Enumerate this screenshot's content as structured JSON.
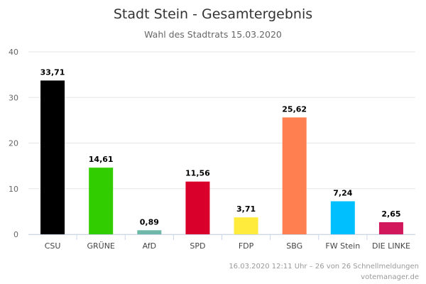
{
  "chart_data": {
    "type": "bar",
    "title": "Stadt Stein - Gesamtergebnis",
    "subtitle": "Wahl des Stadtrats 15.03.2020",
    "xlabel": "",
    "ylabel": "",
    "ylim": [
      0,
      40
    ],
    "yticks": [
      0,
      10,
      20,
      30,
      40
    ],
    "grid": true,
    "categories": [
      "CSU",
      "GRÜNE",
      "AfD",
      "SPD",
      "FDP",
      "SBG",
      "FW Stein",
      "DIE LINKE"
    ],
    "values": [
      33.71,
      14.61,
      0.89,
      11.56,
      3.71,
      25.62,
      7.24,
      2.65
    ],
    "value_labels": [
      "33,71",
      "14,61",
      "0,89",
      "11,56",
      "3,71",
      "25,62",
      "7,24",
      "2,65"
    ],
    "colors": [
      "#000000",
      "#32cd00",
      "#6db8a8",
      "#d9002b",
      "#ffeb3b",
      "#ff7f50",
      "#00bfff",
      "#d2185a"
    ]
  },
  "footer": {
    "line1": "16.03.2020 12:11 Uhr – 26 von 26 Schnellmeldungen",
    "line2": "votemanager.de"
  }
}
